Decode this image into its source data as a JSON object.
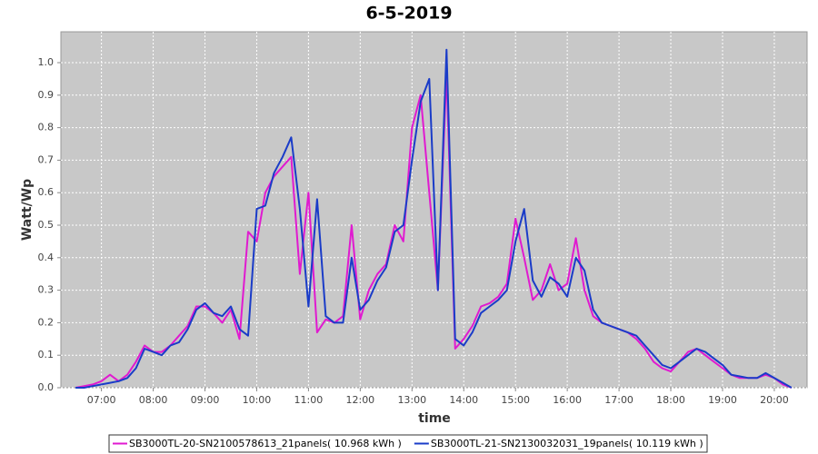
{
  "chart_data": {
    "type": "line",
    "title": "6-5-2019",
    "x_label": "time",
    "y_label": "Watt/Wp",
    "x": [
      390,
      400,
      410,
      420,
      430,
      440,
      450,
      460,
      470,
      480,
      490,
      500,
      510,
      520,
      530,
      540,
      550,
      560,
      570,
      580,
      590,
      600,
      610,
      620,
      630,
      640,
      650,
      660,
      670,
      680,
      690,
      700,
      710,
      720,
      730,
      740,
      750,
      760,
      770,
      780,
      790,
      800,
      810,
      820,
      830,
      840,
      850,
      860,
      870,
      880,
      890,
      900,
      910,
      920,
      930,
      940,
      950,
      960,
      970,
      980,
      990,
      1000,
      1010,
      1020,
      1030,
      1040,
      1050,
      1060,
      1070,
      1080,
      1090,
      1100,
      1110,
      1120,
      1130,
      1140,
      1150,
      1160,
      1170,
      1180,
      1190,
      1200,
      1210,
      1220
    ],
    "series": [
      {
        "name": "SB3000TL-20-SN2100578613_21panels( 10.968 kWh )",
        "color": "#e01ad0",
        "values": [
          0,
          0.005,
          0.01,
          0.02,
          0.04,
          0.02,
          0.04,
          0.08,
          0.13,
          0.11,
          0.11,
          0.13,
          0.16,
          0.19,
          0.25,
          0.25,
          0.23,
          0.2,
          0.24,
          0.15,
          0.48,
          0.45,
          0.6,
          0.65,
          0.68,
          0.71,
          0.35,
          0.6,
          0.17,
          0.21,
          0.2,
          0.22,
          0.5,
          0.21,
          0.3,
          0.35,
          0.38,
          0.5,
          0.45,
          0.8,
          0.9,
          0.6,
          0.3,
          0.97,
          0.12,
          0.15,
          0.19,
          0.25,
          0.26,
          0.28,
          0.32,
          0.52,
          0.4,
          0.27,
          0.3,
          0.38,
          0.3,
          0.32,
          0.46,
          0.3,
          0.22,
          0.2,
          0.19,
          0.18,
          0.17,
          0.15,
          0.12,
          0.08,
          0.06,
          0.05,
          0.08,
          0.11,
          0.12,
          0.1,
          0.08,
          0.06,
          0.04,
          0.03,
          0.03,
          0.03,
          0.04,
          0.03,
          0.01,
          0
        ]
      },
      {
        "name": "SB3000TL-21-SN2130032031_19panels( 10.119 kWh )",
        "color": "#1a3cc8",
        "values": [
          0,
          0,
          0.005,
          0.01,
          0.015,
          0.02,
          0.03,
          0.06,
          0.12,
          0.11,
          0.1,
          0.13,
          0.14,
          0.18,
          0.24,
          0.26,
          0.23,
          0.22,
          0.25,
          0.18,
          0.16,
          0.55,
          0.56,
          0.66,
          0.71,
          0.77,
          0.55,
          0.25,
          0.58,
          0.22,
          0.2,
          0.2,
          0.4,
          0.24,
          0.27,
          0.33,
          0.37,
          0.48,
          0.5,
          0.7,
          0.88,
          0.95,
          0.3,
          1.04,
          0.15,
          0.13,
          0.17,
          0.23,
          0.25,
          0.27,
          0.3,
          0.45,
          0.55,
          0.33,
          0.28,
          0.34,
          0.32,
          0.28,
          0.4,
          0.36,
          0.24,
          0.2,
          0.19,
          0.18,
          0.17,
          0.16,
          0.13,
          0.1,
          0.07,
          0.06,
          0.08,
          0.1,
          0.12,
          0.11,
          0.09,
          0.07,
          0.04,
          0.035,
          0.03,
          0.03,
          0.045,
          0.03,
          0.015,
          0
        ]
      }
    ],
    "xlim": [
      373,
      1238
    ],
    "xticks": [
      {
        "value": 420,
        "label": "07:00"
      },
      {
        "value": 480,
        "label": "08:00"
      },
      {
        "value": 540,
        "label": "09:00"
      },
      {
        "value": 600,
        "label": "10:00"
      },
      {
        "value": 660,
        "label": "11:00"
      },
      {
        "value": 720,
        "label": "12:00"
      },
      {
        "value": 780,
        "label": "13:00"
      },
      {
        "value": 840,
        "label": "14:00"
      },
      {
        "value": 900,
        "label": "15:00"
      },
      {
        "value": 960,
        "label": "16:00"
      },
      {
        "value": 1020,
        "label": "17:00"
      },
      {
        "value": 1080,
        "label": "18:00"
      },
      {
        "value": 1140,
        "label": "19:00"
      },
      {
        "value": 1200,
        "label": "20:00"
      }
    ],
    "ylim": [
      0,
      1.095
    ],
    "yticks": [
      {
        "value": 0,
        "label": "0.0"
      },
      0.1,
      0.2,
      0.3,
      0.4,
      0.5,
      0.6,
      0.7,
      0.8,
      0.9,
      {
        "value": 1,
        "label": "1.0"
      }
    ],
    "grid": true
  }
}
